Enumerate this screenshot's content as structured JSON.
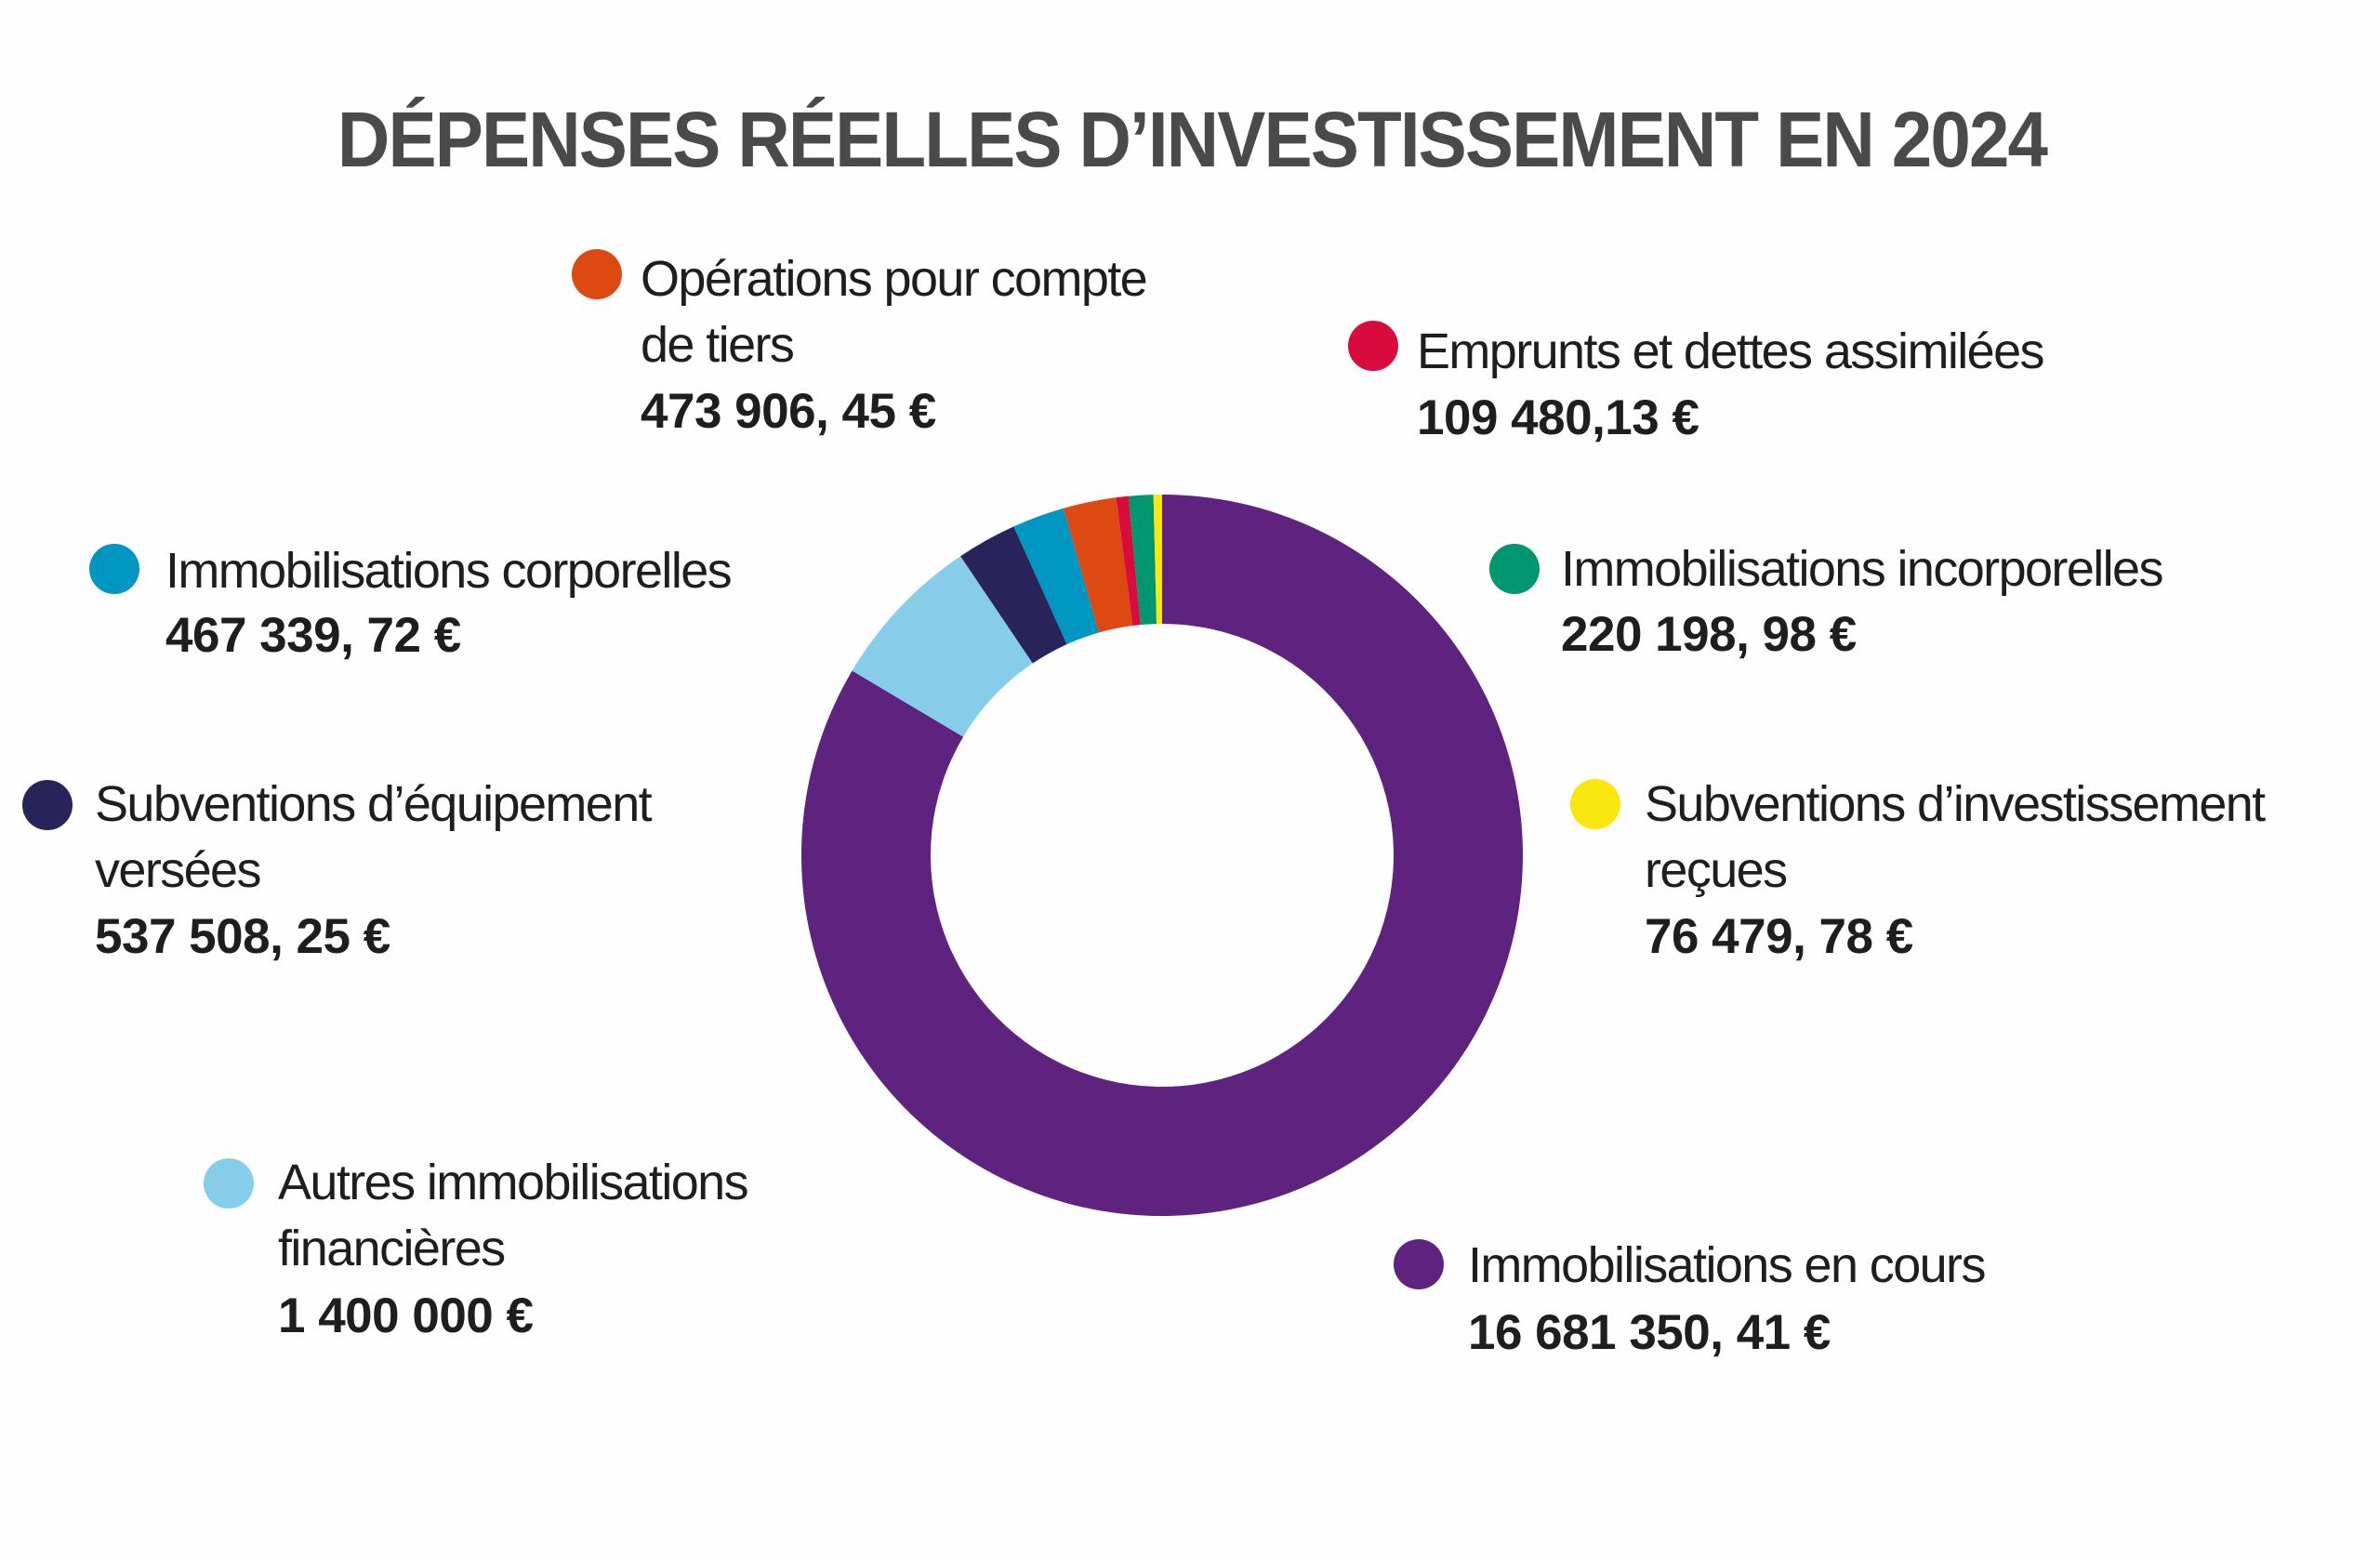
{
  "chart_data": {
    "type": "pie",
    "variant": "donut",
    "title": "DÉPENSES RÉELLES D’INVESTISSEMENT EN 2024",
    "currency": "EUR",
    "start_angle_deg": 0,
    "direction": "clockwise",
    "slices": [
      {
        "key": "en_cours",
        "label_lines": [
          "Immobilisations en cours"
        ],
        "value": 16681350.41,
        "value_label": "16 681 350, 41 €",
        "color": "#5e227f"
      },
      {
        "key": "autres_fin",
        "label_lines": [
          "Autres immobilisations",
          "financières"
        ],
        "value": 1400000,
        "value_label": "1 400 000 €",
        "color": "#86cdea"
      },
      {
        "key": "subv_equip",
        "label_lines": [
          "Subventions d’équipement",
          "versées"
        ],
        "value": 537508.25,
        "value_label": "537 508, 25 €",
        "color": "#28235b"
      },
      {
        "key": "corporelles",
        "label_lines": [
          "Immobilisations corporelles"
        ],
        "value": 467339.72,
        "value_label": "467 339, 72 €",
        "color": "#0096c2"
      },
      {
        "key": "tiers",
        "label_lines": [
          "Opérations pour compte",
          "de tiers"
        ],
        "value": 473906.45,
        "value_label": "473 906, 45 €",
        "color": "#dc4a12"
      },
      {
        "key": "emprunts",
        "label_lines": [
          "Emprunts et dettes assimilées"
        ],
        "value": 109480.13,
        "value_label": "109 480,13 €",
        "color": "#d80b3c"
      },
      {
        "key": "incorporelles",
        "label_lines": [
          "Immobilisations incorporelles"
        ],
        "value": 220198.98,
        "value_label": "220 198, 98 €",
        "color": "#009670"
      },
      {
        "key": "subv_invest",
        "label_lines": [
          "Subventions d’investissement",
          "reçues"
        ],
        "value": 76479.78,
        "value_label": "76 479, 78 €",
        "color": "#f9e70f"
      }
    ]
  }
}
